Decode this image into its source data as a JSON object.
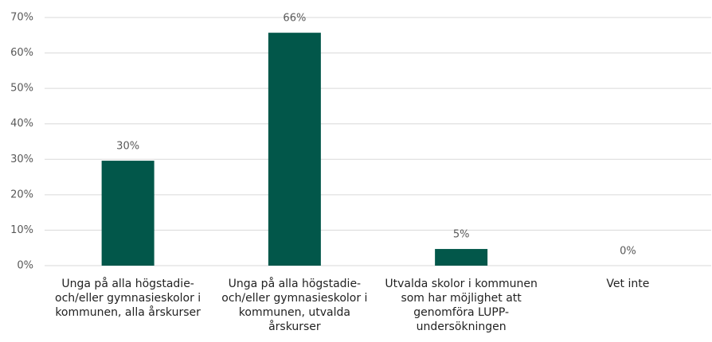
{
  "chart_data": {
    "type": "bar",
    "categories": [
      "Unga på alla högstadie- och/eller gymnasieskolor i kommunen, alla årskurser",
      "Unga på alla högstadie- och/eller gymnasieskolor i kommunen, utvalda årskurser",
      "Utvalda skolor i kommunen som har möjlighet att genomföra LUPP-undersökningen",
      "Vet inte"
    ],
    "values": [
      29.6,
      65.7,
      4.7,
      0
    ],
    "value_labels": [
      "30%",
      "66%",
      "5%",
      "0%"
    ],
    "color": "#02574a",
    "ylim": [
      0,
      70
    ],
    "yticks": [
      {
        "value": 0,
        "label": "0%"
      },
      {
        "value": 10,
        "label": "10%"
      },
      {
        "value": 20,
        "label": "20%"
      },
      {
        "value": 30,
        "label": "30%"
      },
      {
        "value": 40,
        "label": "40%"
      },
      {
        "value": 50,
        "label": "50%"
      },
      {
        "value": 60,
        "label": "60%"
      },
      {
        "value": 70,
        "label": "70%"
      }
    ],
    "grid": true
  }
}
